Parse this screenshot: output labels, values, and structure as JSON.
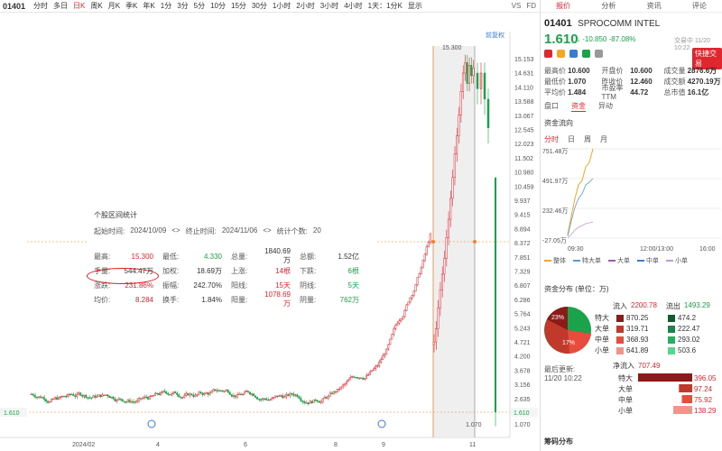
{
  "toolbar": {
    "code": "01401",
    "tabs": [
      "分时",
      "多日",
      "日K",
      "周K",
      "月K",
      "季K",
      "年K",
      "1分",
      "3分",
      "5分",
      "10分",
      "15分",
      "30分",
      "1小时",
      "2小时",
      "3小时",
      "4小时",
      "1天：1分K",
      "显示"
    ],
    "active_index": 2,
    "icons": [
      "VS",
      "FD"
    ]
  },
  "chart": {
    "adjust_label": "前复权",
    "y_labels": [
      "15.153",
      "14.631",
      "14.110",
      "13.588",
      "13.067",
      "12.545",
      "12.023",
      "11.502",
      "10.980",
      "10.459",
      "9.937",
      "9.415",
      "8.894",
      "8.372",
      "7.851",
      "7.329",
      "6.807",
      "6.286",
      "5.764",
      "5.243",
      "4.721",
      "4.200",
      "3.678",
      "3.156",
      "2.635",
      "2.113",
      "1.610",
      "1.070"
    ],
    "x_labels": [
      "2024/02",
      "4",
      "6",
      "8",
      "9",
      "11"
    ],
    "high_marker": "15.300",
    "low_marker": "1.070",
    "current_price_tag": "1.610"
  },
  "stats": {
    "title": "个股区间统计",
    "start_label": "起始时间:",
    "start": "2024/10/09",
    "end_label": "终止时间:",
    "end": "2024/11/06",
    "days_label": "统计个数:",
    "days": "20",
    "rows": [
      [
        {
          "k": "最高:",
          "v": "15.300",
          "c": "red"
        },
        {
          "k": "最低:",
          "v": "4.330",
          "c": "green"
        },
        {
          "k": "总量:",
          "v": "1840.69万",
          "c": ""
        },
        {
          "k": "总额:",
          "v": "1.52亿",
          "c": ""
        }
      ],
      [
        {
          "k": "手量:",
          "v": "544.47万",
          "c": ""
        },
        {
          "k": "加权:",
          "v": "18.69万",
          "c": ""
        },
        {
          "k": "上涨:",
          "v": "14根",
          "c": "red"
        },
        {
          "k": "下跌:",
          "v": "6根",
          "c": "green"
        }
      ],
      [
        {
          "k": "涨跌:",
          "v": "231.86%",
          "c": "red"
        },
        {
          "k": "振幅:",
          "v": "242.70%",
          "c": ""
        },
        {
          "k": "阳线:",
          "v": "15天",
          "c": "red"
        },
        {
          "k": "阴线:",
          "v": "5天",
          "c": "green"
        }
      ],
      [
        {
          "k": "均价:",
          "v": "8.284",
          "c": "red"
        },
        {
          "k": "换手:",
          "v": "1.84%",
          "c": ""
        },
        {
          "k": "阳量:",
          "v": "1078.69万",
          "c": "red"
        },
        {
          "k": "阴量:",
          "v": "762万",
          "c": "green"
        }
      ]
    ]
  },
  "right": {
    "tabs": [
      "报价",
      "分析",
      "资讯",
      "评论"
    ],
    "code": "01401",
    "name": "SPROCOMM INTEL",
    "price": "1.610",
    "change": "-10.850 -87.08%",
    "time": "交易中 11/20 10:22",
    "quick_trade": "快捷交易",
    "quote": [
      [
        {
          "k": "最高价",
          "v": "10.600"
        },
        {
          "k": "开盘价",
          "v": "10.600"
        },
        {
          "k": "成交量",
          "v": "2876.6万"
        }
      ],
      [
        {
          "k": "最低价",
          "v": "1.070"
        },
        {
          "k": "昨收价",
          "v": "12.460"
        },
        {
          "k": "成交额",
          "v": "4270.19万"
        }
      ],
      [
        {
          "k": "平均价",
          "v": "1.484"
        },
        {
          "k": "市盈率TTM",
          "v": "44.72"
        },
        {
          "k": "总市值",
          "v": "16.1亿"
        }
      ]
    ],
    "subtabs": [
      "盘口",
      "资金",
      "异动"
    ],
    "flow_title": "资金流向",
    "period_tabs": [
      "分时",
      "日",
      "周",
      "月"
    ],
    "flow_y": [
      "751.48万",
      "491.97万",
      "232.46万",
      "-27.05万"
    ],
    "flow_x": [
      "09:30",
      "12:00/13:00",
      "16:00"
    ],
    "flow_legend": [
      {
        "n": "整体",
        "c": "#f5a623"
      },
      {
        "n": "特大单",
        "c": "#5b9bd5"
      },
      {
        "n": "大单",
        "c": "#9b59b6"
      },
      {
        "n": "中单",
        "c": "#3a7bd5"
      },
      {
        "n": "小单",
        "c": "#c39bd3"
      }
    ],
    "dist_title": "资金分布 (单位：万)",
    "inflow_label": "流入",
    "inflow_total": "2200.78",
    "outflow_label": "流出",
    "outflow_total": "1493.29",
    "pie_labels": [
      "23%",
      "17%"
    ],
    "dist_rows": [
      {
        "k": "特大",
        "in": "870.25",
        "out": "474.2"
      },
      {
        "k": "大单",
        "in": "319.71",
        "out": "222.47"
      },
      {
        "k": "中单",
        "in": "368.93",
        "out": "293.02"
      },
      {
        "k": "小单",
        "in": "641.89",
        "out": "503.6"
      }
    ],
    "update_label": "最后更新:",
    "update_time": "11/20 10:22",
    "net_label": "净流入",
    "net_total": "707.49",
    "net_rows": [
      {
        "k": "特大",
        "v": "396.05"
      },
      {
        "k": "大单",
        "v": "97.24"
      },
      {
        "k": "中单",
        "v": "75.92"
      },
      {
        "k": "小单",
        "v": "138.29"
      }
    ],
    "bottom_label": "筹码分布"
  }
}
